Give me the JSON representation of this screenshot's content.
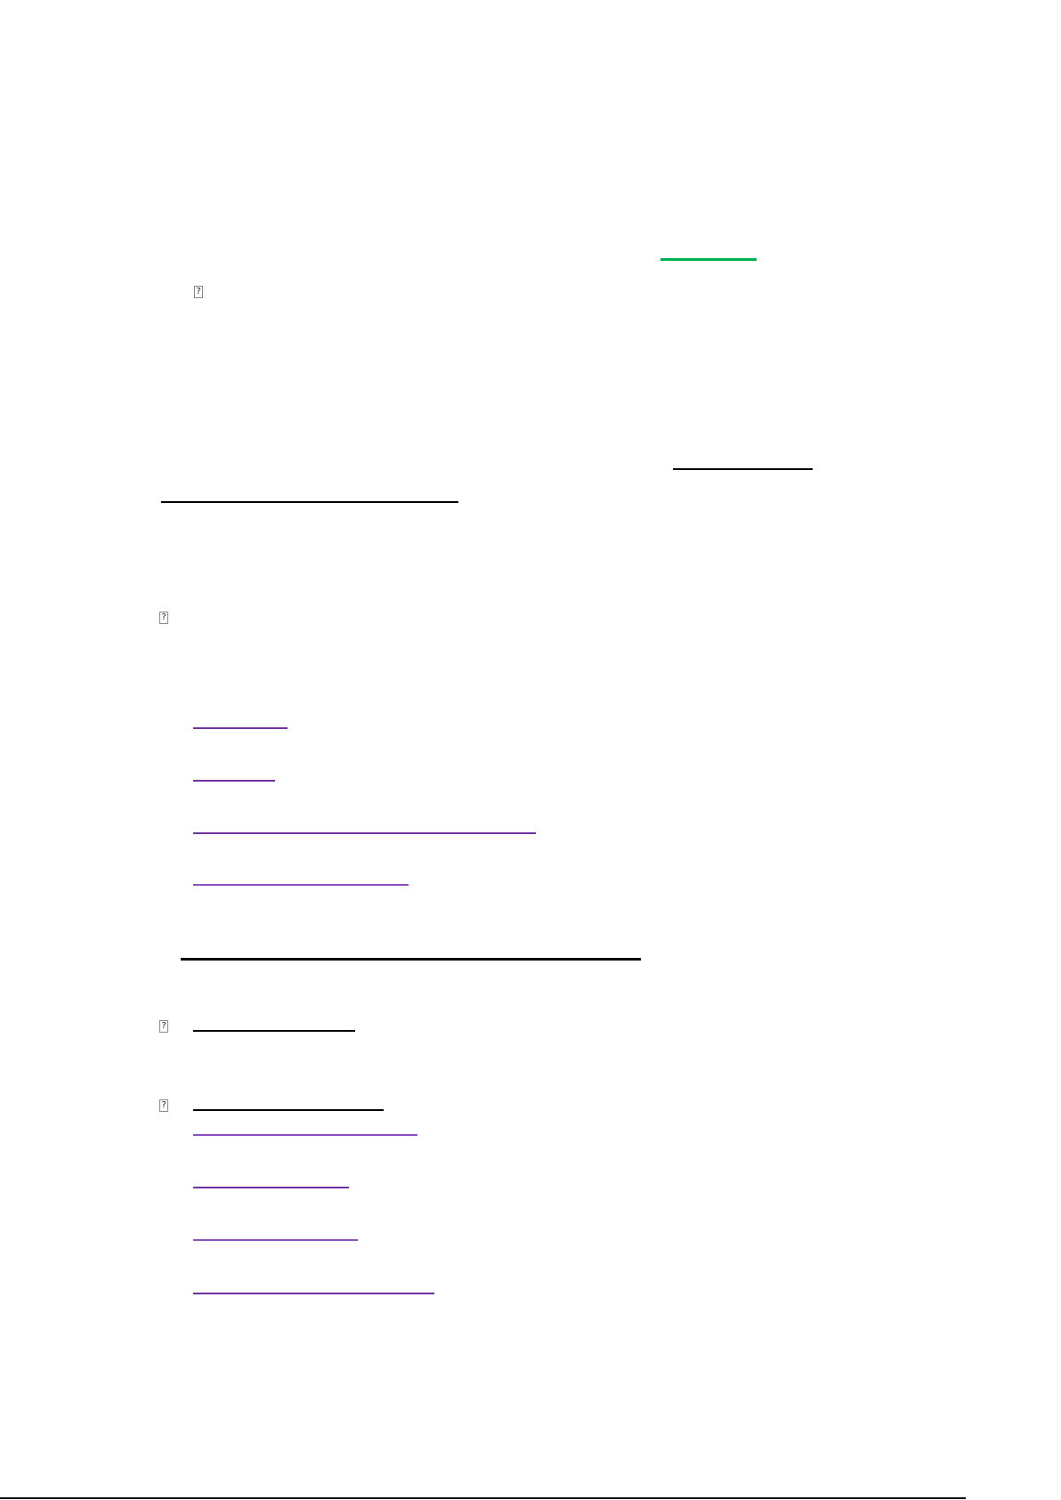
{
  "colors": {
    "link_green": "#00b050",
    "link_black": "#000000",
    "link_purple": "#7030a0",
    "link_purple_light": "#8a4fc0"
  },
  "icons": {
    "broken_image": "broken-image-icon",
    "broken_glyph": "?"
  }
}
